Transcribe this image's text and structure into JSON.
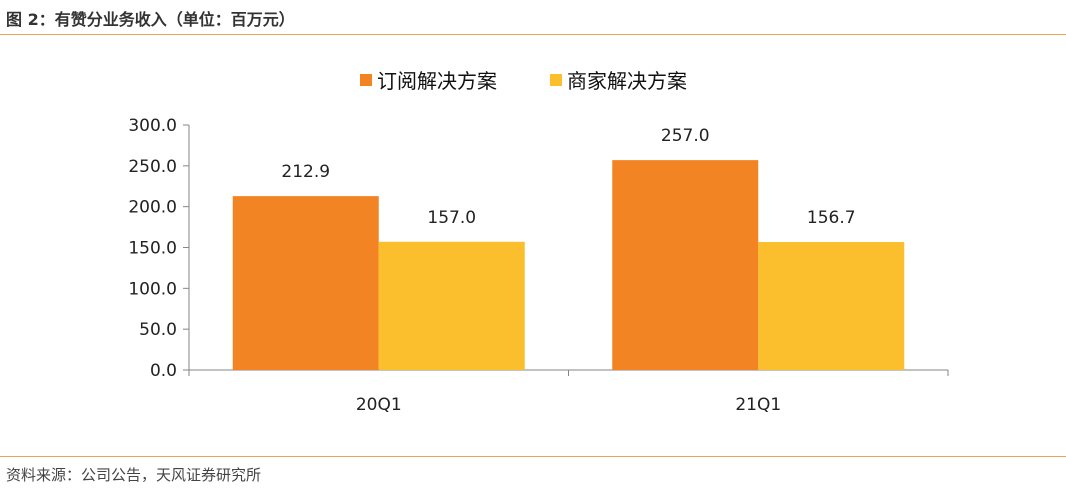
{
  "figure": {
    "title": "图 2：有赞分业务收入（单位：百万元）",
    "source": "资料来源：公司公告，天风证券研究所"
  },
  "chart_data": {
    "type": "bar",
    "categories": [
      "20Q1",
      "21Q1"
    ],
    "series": [
      {
        "name": "订阅解决方案",
        "values": [
          212.9,
          257.0
        ],
        "color": "#f28424"
      },
      {
        "name": "商家解决方案",
        "values": [
          157.0,
          156.7
        ],
        "color": "#fbbf2d"
      }
    ],
    "ylim": [
      0,
      300
    ],
    "yticks": [
      "0.0",
      "50.0",
      "100.0",
      "150.0",
      "200.0",
      "250.0",
      "300.0"
    ],
    "data_labels": [
      [
        "212.9",
        "257.0"
      ],
      [
        "157.0",
        "156.7"
      ]
    ],
    "legend_position": "top",
    "grid": false,
    "title": "",
    "xlabel": "",
    "ylabel": ""
  }
}
